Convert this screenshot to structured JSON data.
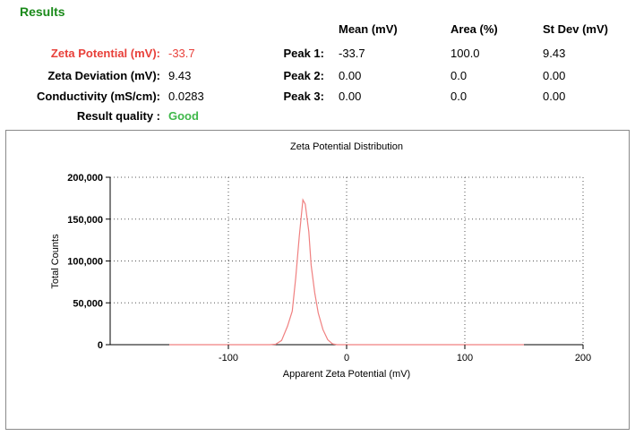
{
  "results": {
    "title": "Results",
    "summary": [
      {
        "label": "Zeta Potential (mV):",
        "value": "-33.7",
        "highlight": true
      },
      {
        "label": "Zeta Deviation (mV):",
        "value": "9.43",
        "highlight": false
      },
      {
        "label": "Conductivity (mS/cm):",
        "value": "0.0283",
        "highlight": false
      },
      {
        "label": "Result quality :",
        "value": "Good",
        "highlight": false
      }
    ],
    "peak_table": {
      "headers": [
        "Mean (mV)",
        "Area (%)",
        "St Dev (mV)"
      ],
      "rows": [
        {
          "label": "Peak 1:",
          "mean": "-33.7",
          "area": "100.0",
          "stdev": "9.43"
        },
        {
          "label": "Peak 2:",
          "mean": "0.00",
          "area": "0.0",
          "stdev": "0.00"
        },
        {
          "label": "Peak 3:",
          "mean": "0.00",
          "area": "0.0",
          "stdev": "0.00"
        }
      ]
    }
  },
  "colors": {
    "title_green": "#1a8a1a",
    "highlight_red": "#e8403a",
    "good_green": "#3fb84a",
    "curve": "#f08080"
  },
  "chart_data": {
    "type": "line",
    "title": "Zeta Potential Distribution",
    "xlabel": "Apparent Zeta Potential (mV)",
    "ylabel": "Total Counts",
    "xlim": [
      -200,
      200
    ],
    "ylim": [
      0,
      200000
    ],
    "xticks": [
      -100,
      0,
      100,
      200
    ],
    "xtick_labels": [
      "-100",
      "0",
      "100",
      "200"
    ],
    "yticks": [
      0,
      50000,
      100000,
      150000,
      200000
    ],
    "ytick_labels": [
      "0",
      "50,000",
      "100,000",
      "150,000",
      "200,000"
    ],
    "grid": true,
    "series": [
      {
        "x": [
          -150,
          -80,
          -65,
          -60,
          -55,
          -50,
          -46,
          -43,
          -40,
          -37,
          -35,
          -32,
          -30,
          -27,
          -24,
          -20,
          -16,
          -12,
          -8,
          -4,
          0,
          20,
          80,
          150
        ],
        "y": [
          0,
          0,
          0,
          500,
          5000,
          22000,
          40000,
          80000,
          130000,
          173000,
          168000,
          135000,
          95000,
          62000,
          38000,
          18000,
          6000,
          1000,
          0,
          0,
          0,
          0,
          0,
          0
        ]
      }
    ]
  }
}
